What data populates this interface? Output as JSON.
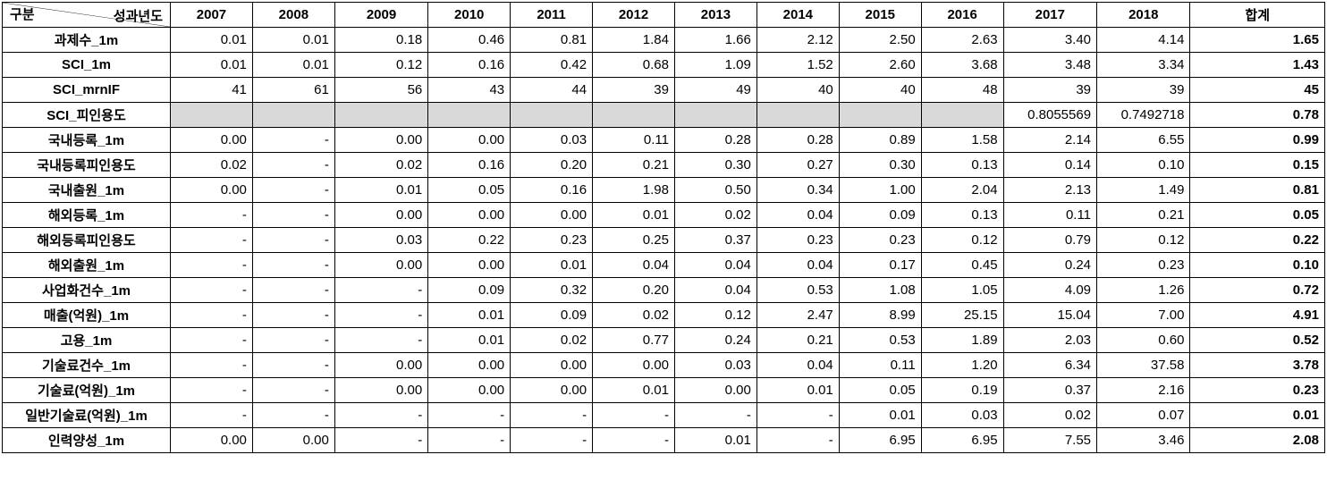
{
  "corner": {
    "top": "성과년도",
    "bottom": "구분"
  },
  "years": [
    "2007",
    "2008",
    "2009",
    "2010",
    "2011",
    "2012",
    "2013",
    "2014",
    "2015",
    "2016",
    "2017",
    "2018"
  ],
  "total_label": "합계",
  "rows": [
    {
      "label": "과제수_1m",
      "cells": [
        "0.01",
        "0.01",
        "0.18",
        "0.46",
        "0.81",
        "1.84",
        "1.66",
        "2.12",
        "2.50",
        "2.63",
        "3.40",
        "4.14"
      ],
      "total": "1.65",
      "shaded": []
    },
    {
      "label": "SCI_1m",
      "cells": [
        "0.01",
        "0.01",
        "0.12",
        "0.16",
        "0.42",
        "0.68",
        "1.09",
        "1.52",
        "2.60",
        "3.68",
        "3.48",
        "3.34"
      ],
      "total": "1.43",
      "shaded": []
    },
    {
      "label": "SCI_mrnIF",
      "cells": [
        "41",
        "61",
        "56",
        "43",
        "44",
        "39",
        "49",
        "40",
        "40",
        "48",
        "39",
        "39"
      ],
      "total": "45",
      "shaded": []
    },
    {
      "label": "SCI_피인용도",
      "cells": [
        "",
        "",
        "",
        "",
        "",
        "",
        "",
        "",
        "",
        "",
        "0.8055569",
        "0.7492718"
      ],
      "total": "0.78",
      "shaded": [
        0,
        1,
        2,
        3,
        4,
        5,
        6,
        7,
        8,
        9
      ]
    },
    {
      "label": "국내등록_1m",
      "cells": [
        "0.00",
        "-",
        "0.00",
        "0.00",
        "0.03",
        "0.11",
        "0.28",
        "0.28",
        "0.89",
        "1.58",
        "2.14",
        "6.55"
      ],
      "total": "0.99",
      "shaded": []
    },
    {
      "label": "국내등록피인용도",
      "cells": [
        "0.02",
        "-",
        "0.02",
        "0.16",
        "0.20",
        "0.21",
        "0.30",
        "0.27",
        "0.30",
        "0.13",
        "0.14",
        "0.10"
      ],
      "total": "0.15",
      "shaded": []
    },
    {
      "label": "국내출원_1m",
      "cells": [
        "0.00",
        "-",
        "0.01",
        "0.05",
        "0.16",
        "1.98",
        "0.50",
        "0.34",
        "1.00",
        "2.04",
        "2.13",
        "1.49"
      ],
      "total": "0.81",
      "shaded": []
    },
    {
      "label": "해외등록_1m",
      "cells": [
        "-",
        "-",
        "0.00",
        "0.00",
        "0.00",
        "0.01",
        "0.02",
        "0.04",
        "0.09",
        "0.13",
        "0.11",
        "0.21"
      ],
      "total": "0.05",
      "shaded": []
    },
    {
      "label": "해외등록피인용도",
      "cells": [
        "-",
        "-",
        "0.03",
        "0.22",
        "0.23",
        "0.25",
        "0.37",
        "0.23",
        "0.23",
        "0.12",
        "0.79",
        "0.12"
      ],
      "total": "0.22",
      "shaded": []
    },
    {
      "label": "해외출원_1m",
      "cells": [
        "-",
        "-",
        "0.00",
        "0.00",
        "0.01",
        "0.04",
        "0.04",
        "0.04",
        "0.17",
        "0.45",
        "0.24",
        "0.23"
      ],
      "total": "0.10",
      "shaded": []
    },
    {
      "label": "사업화건수_1m",
      "cells": [
        "-",
        "-",
        "-",
        "0.09",
        "0.32",
        "0.20",
        "0.04",
        "0.53",
        "1.08",
        "1.05",
        "4.09",
        "1.26"
      ],
      "total": "0.72",
      "shaded": []
    },
    {
      "label": "매출(억원)_1m",
      "cells": [
        "-",
        "-",
        "-",
        "0.01",
        "0.09",
        "0.02",
        "0.12",
        "2.47",
        "8.99",
        "25.15",
        "15.04",
        "7.00"
      ],
      "total": "4.91",
      "shaded": []
    },
    {
      "label": "고용_1m",
      "cells": [
        "-",
        "-",
        "-",
        "0.01",
        "0.02",
        "0.77",
        "0.24",
        "0.21",
        "0.53",
        "1.89",
        "2.03",
        "0.60"
      ],
      "total": "0.52",
      "shaded": []
    },
    {
      "label": "기술료건수_1m",
      "cells": [
        "-",
        "-",
        "0.00",
        "0.00",
        "0.00",
        "0.00",
        "0.03",
        "0.04",
        "0.11",
        "1.20",
        "6.34",
        "37.58"
      ],
      "total": "3.78",
      "shaded": []
    },
    {
      "label": "기술료(억원)_1m",
      "cells": [
        "-",
        "-",
        "0.00",
        "0.00",
        "0.00",
        "0.01",
        "0.00",
        "0.01",
        "0.05",
        "0.19",
        "0.37",
        "2.16"
      ],
      "total": "0.23",
      "shaded": []
    },
    {
      "label": "일반기술료(억원)_1m",
      "cells": [
        "-",
        "-",
        "-",
        "-",
        "-",
        "-",
        "-",
        "-",
        "0.01",
        "0.03",
        "0.02",
        "0.07"
      ],
      "total": "0.01",
      "shaded": []
    },
    {
      "label": "인력양성_1m",
      "cells": [
        "0.00",
        "0.00",
        "-",
        "-",
        "-",
        "-",
        "0.01",
        "-",
        "6.95",
        "6.95",
        "7.55",
        "3.46"
      ],
      "total": "2.08",
      "shaded": []
    }
  ]
}
